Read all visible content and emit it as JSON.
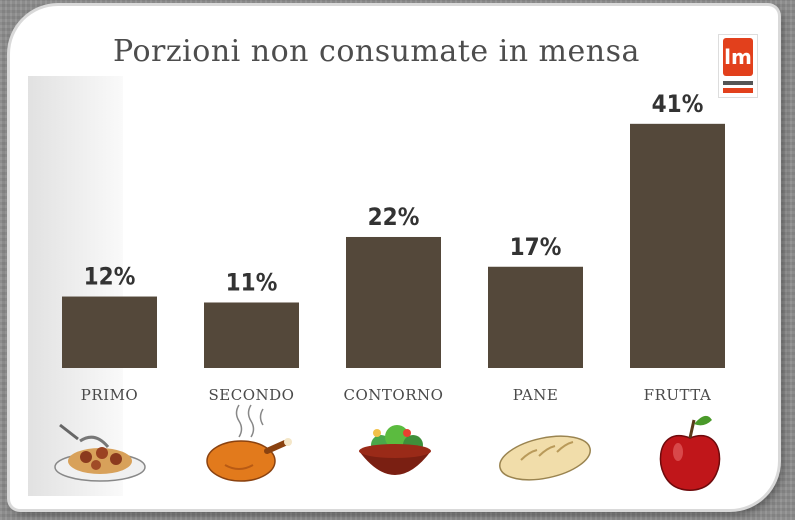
{
  "chart_data": {
    "type": "bar",
    "title": "Porzioni non consumate in mensa",
    "categories": [
      "PRIMO",
      "SECONDO",
      "CONTORNO",
      "PANE",
      "FRUTTA"
    ],
    "values": [
      12,
      11,
      22,
      17,
      41
    ],
    "value_labels": [
      "12%",
      "11%",
      "22%",
      "17%",
      "41%"
    ],
    "unit": "%",
    "ylim": [
      0,
      45
    ],
    "grid": false,
    "legend": "none",
    "bar_color": "#54483a",
    "category_icons": [
      "spaghetti-plate-icon",
      "roast-chicken-icon",
      "salad-bowl-icon",
      "bread-loaf-icon",
      "red-apple-icon"
    ]
  },
  "colors": {
    "logo_red": "#e2401c",
    "title_gray": "#4d4d4d"
  },
  "logo": {
    "icon": "lm-logo-icon",
    "text": "lm"
  }
}
